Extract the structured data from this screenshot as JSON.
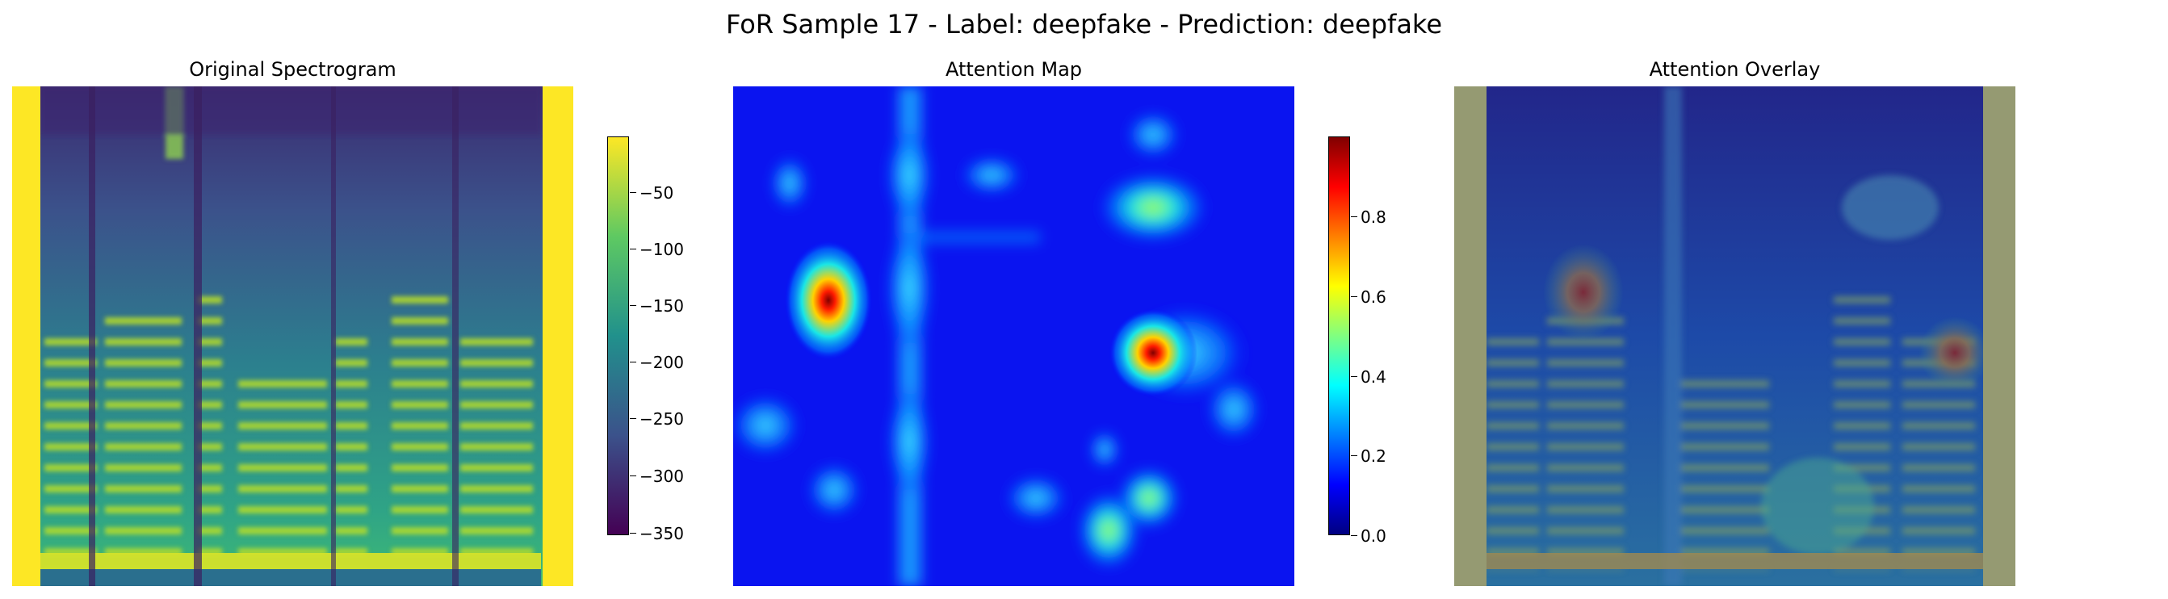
{
  "figure": {
    "suptitle": "FoR Sample 17 - Label: deepfake - Prediction: deepfake"
  },
  "panels": {
    "spectrogram": {
      "title": "Original Spectrogram"
    },
    "attention": {
      "title": "Attention Map"
    },
    "overlay": {
      "title": "Attention Overlay"
    }
  },
  "chart_data": [
    {
      "type": "heatmap",
      "title": "Original Spectrogram",
      "colormap": "viridis",
      "colorbar": {
        "ticks": [
          "−50",
          "−100",
          "−150",
          "−200",
          "−250",
          "−300",
          "−350"
        ],
        "values": [
          -50,
          -100,
          -150,
          -200,
          -250,
          -300,
          -350
        ],
        "range": [
          -355,
          -5
        ]
      },
      "padding_bands": "left and right edges at max value (yellow)",
      "axes": "off"
    },
    {
      "type": "heatmap",
      "title": "Attention Map",
      "colormap": "jet",
      "colorbar": {
        "ticks": [
          "0.0",
          "0.2",
          "0.4",
          "0.6",
          "0.8"
        ],
        "values": [
          0.0,
          0.2,
          0.4,
          0.6,
          0.8
        ],
        "range": [
          0.0,
          1.0
        ]
      },
      "hotspots": [
        {
          "x": 0.17,
          "y": 0.43,
          "value": 1.0
        },
        {
          "x": 0.75,
          "y": 0.53,
          "value": 1.0
        },
        {
          "x": 0.74,
          "y": 0.25,
          "value": 0.55
        },
        {
          "x": 0.67,
          "y": 0.9,
          "value": 0.55
        },
        {
          "x": 0.74,
          "y": 0.82,
          "value": 0.5
        },
        {
          "x": 0.32,
          "y": 0.18,
          "value": 0.42
        },
        {
          "x": 0.06,
          "y": 0.68,
          "value": 0.4
        }
      ],
      "axes": "off"
    },
    {
      "type": "heatmap",
      "title": "Attention Overlay",
      "description_values": "spectrogram blended with jet attention map",
      "axes": "off"
    }
  ]
}
